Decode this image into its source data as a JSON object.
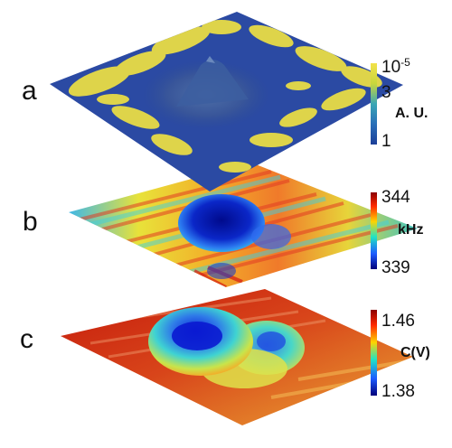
{
  "panels": [
    {
      "label": "a",
      "colorbar": {
        "ticks": [
          {
            "text": "10",
            "sup": "-5"
          },
          {
            "text": "3",
            "sup": ""
          },
          {
            "text": "1",
            "sup": ""
          }
        ],
        "unit": "A. U.",
        "colors": [
          "#f2e24a",
          "#c9d63c",
          "#3aa7b5",
          "#2a6fb8",
          "#1c3f98"
        ]
      }
    },
    {
      "label": "b",
      "colorbar": {
        "ticks": [
          {
            "text": "344",
            "sup": ""
          },
          {
            "text": "339",
            "sup": ""
          }
        ],
        "unit": "kHz",
        "colors": [
          "#8b0000",
          "#ff2a00",
          "#ffd400",
          "#20e3c5",
          "#1e5cff",
          "#00007a"
        ]
      }
    },
    {
      "label": "c",
      "colorbar": {
        "ticks": [
          {
            "text": "1.46",
            "sup": ""
          },
          {
            "text": "1.38",
            "sup": ""
          }
        ],
        "unit": "C(V)",
        "colors": [
          "#8b0000",
          "#ff2a00",
          "#ffd400",
          "#20e3c5",
          "#1e5cff",
          "#00007a"
        ]
      }
    }
  ]
}
